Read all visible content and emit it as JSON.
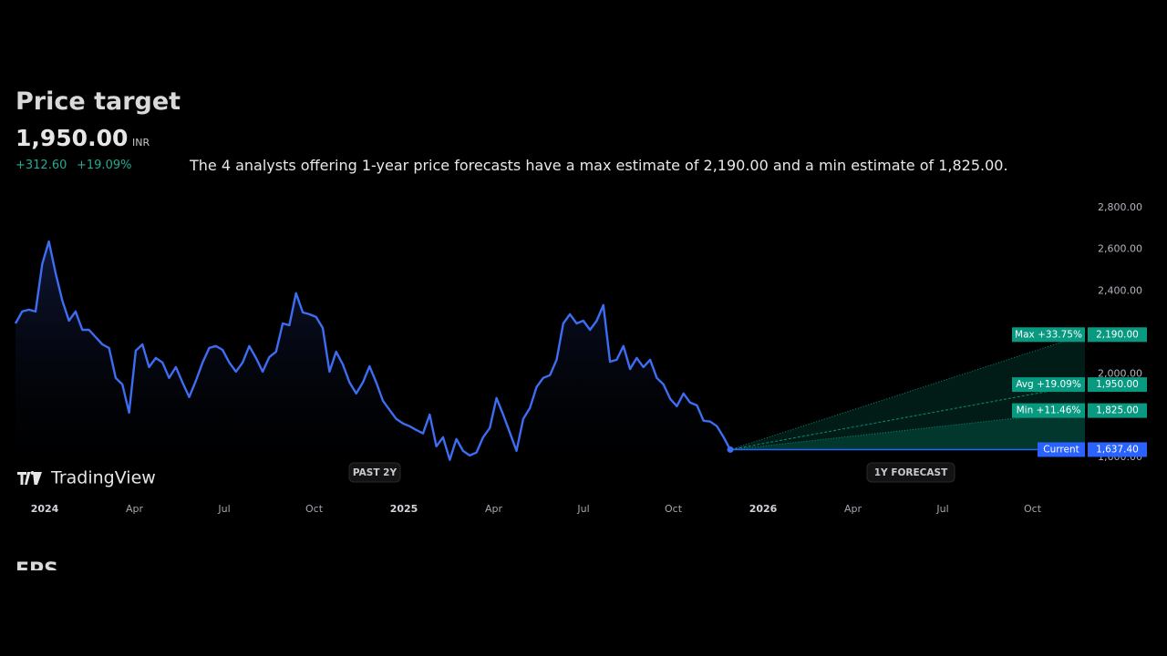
{
  "header": {
    "title": "Price target",
    "price": "1,950.00",
    "currency": "INR",
    "change": "+312.60",
    "change_percent": "+19.09%",
    "description": "The 4 analysts offering 1-year price forecasts have a max estimate of 2,190.00 and a min estimate of 1,825.00."
  },
  "chart_data": {
    "type": "line",
    "brand": "TradingView",
    "period_labels": [
      "PAST 2Y",
      "1Y FORECAST"
    ],
    "x_labels": [
      "2024",
      "Apr",
      "Jul",
      "Oct",
      "2025",
      "Apr",
      "Jul",
      "Oct",
      "2026",
      "Apr",
      "Jul",
      "Oct"
    ],
    "series": [
      {
        "name": "Price",
        "color": "#3d6df2",
        "values": [
          2244,
          2301,
          2310,
          2301,
          2529,
          2638,
          2485,
          2354,
          2257,
          2301,
          2213,
          2213,
          2178,
          2143,
          2126,
          1982,
          1951,
          1815,
          2113,
          2143,
          2034,
          2078,
          2056,
          1982,
          2034,
          1960,
          1890,
          1968,
          2056,
          2126,
          2135,
          2117,
          2056,
          2012,
          2056,
          2135,
          2078,
          2012,
          2082,
          2108,
          2244,
          2235,
          2389,
          2297,
          2288,
          2275,
          2222,
          2012,
          2108,
          2047,
          1960,
          1907,
          1960,
          2038,
          1960,
          1872,
          1828,
          1785,
          1763,
          1750,
          1732,
          1715,
          1806,
          1653,
          1697,
          1588,
          1688,
          1631,
          1609,
          1623,
          1697,
          1741,
          1885,
          1806,
          1719,
          1631,
          1785,
          1837,
          1938,
          1982,
          1995,
          2069,
          2244,
          2288,
          2244,
          2257,
          2213,
          2257,
          2332,
          2060,
          2069,
          2135,
          2025,
          2078,
          2034,
          2069,
          1982,
          1951,
          1881,
          1846,
          1907,
          1863,
          1850,
          1776,
          1772,
          1750,
          1697,
          1637.4
        ]
      }
    ],
    "current": {
      "name": "Current",
      "value": 1637.4,
      "value_label": "1,637.40",
      "color": "#2962ff"
    },
    "forecast": [
      {
        "label": "Max +33.75%",
        "value": 2190,
        "value_label": "2,190.00"
      },
      {
        "label": "Avg +19.09%",
        "value": 1950,
        "value_label": "1,950.00"
      },
      {
        "label": "Min +11.46%",
        "value": 1825,
        "value_label": "1,825.00"
      }
    ],
    "forecast_color": "#089981",
    "ylim": [
      1540,
      2800
    ],
    "yticks": [
      {
        "value": 1600,
        "label": "1,600.00"
      },
      {
        "value": 2000,
        "label": "2,000.00"
      },
      {
        "value": 2400,
        "label": "2,400.00"
      },
      {
        "value": 2600,
        "label": "2,600.00"
      },
      {
        "value": 2800,
        "label": "2,800.00"
      }
    ]
  },
  "next_section": "EPS"
}
